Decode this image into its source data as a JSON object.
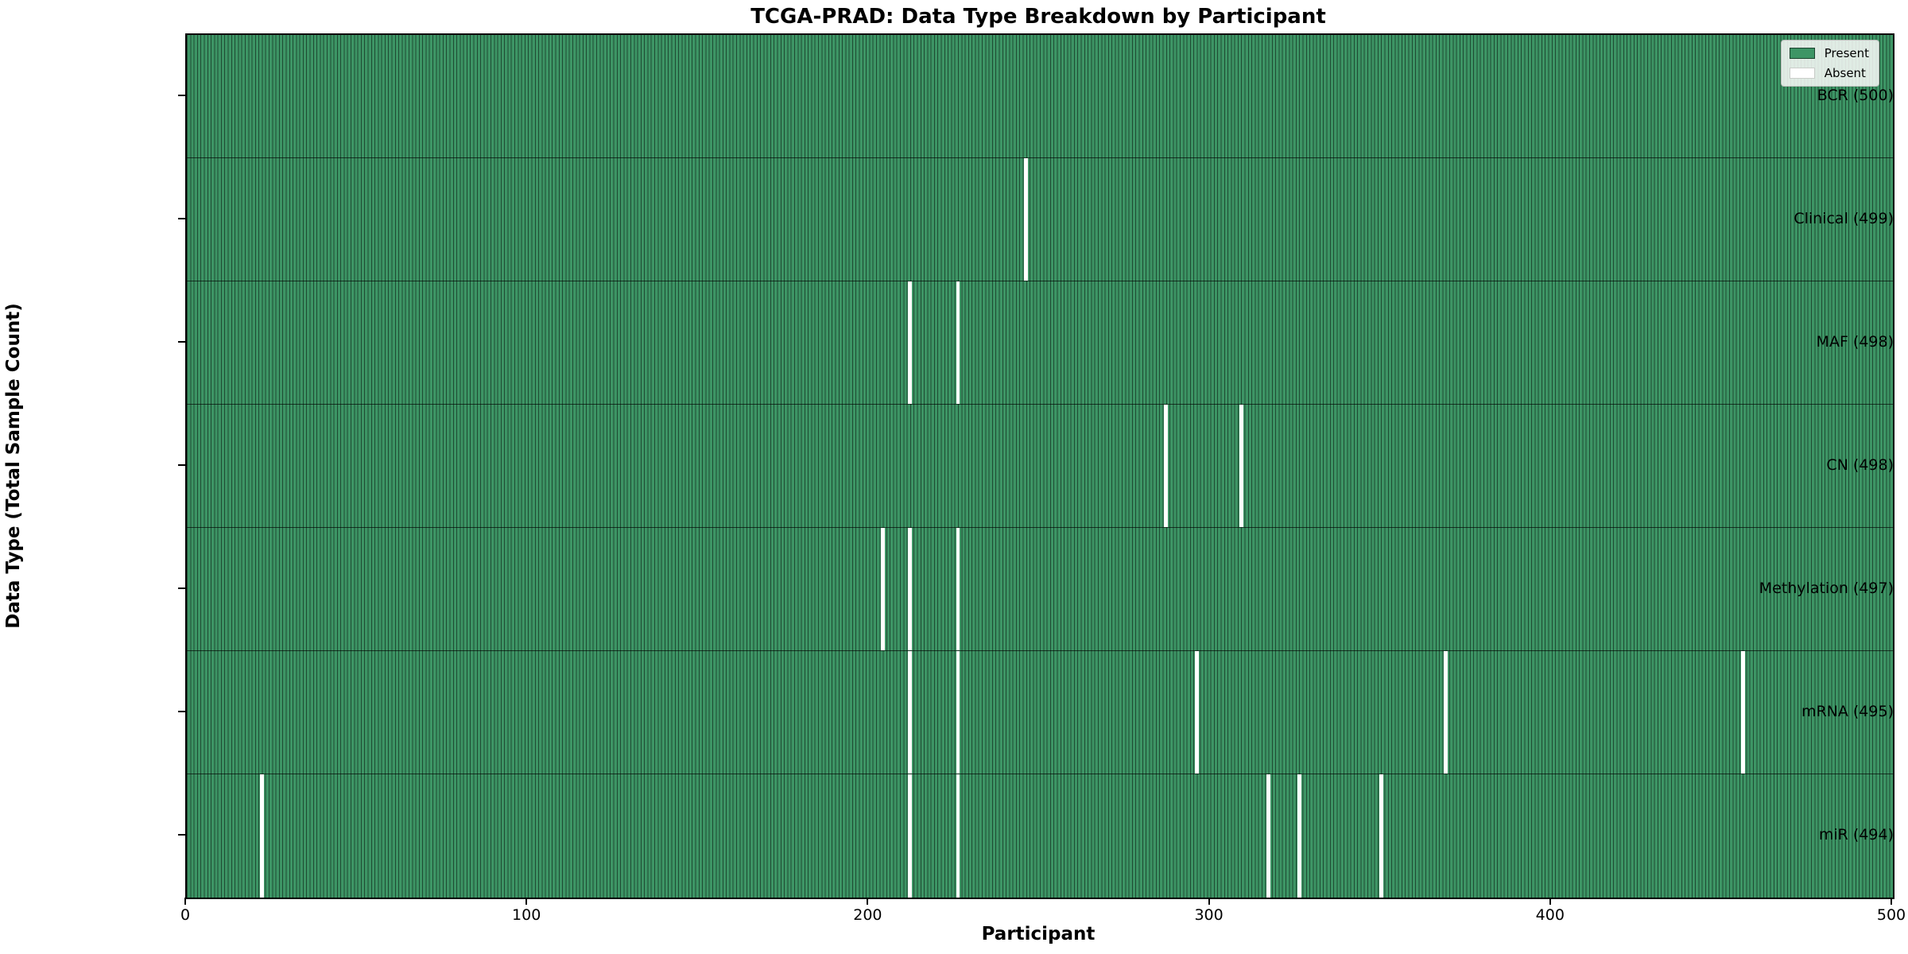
{
  "title": "TCGA-PRAD: Data Type Breakdown by Participant",
  "axes": {
    "xlabel": "Participant",
    "ylabel": "Data Type (Total Sample Count)"
  },
  "legend": {
    "present_label": "Present",
    "absent_label": "Absent"
  },
  "chart_data": {
    "type": "heatmap",
    "title": "TCGA-PRAD: Data Type Breakdown by Participant",
    "xlabel": "Participant",
    "ylabel": "Data Type (Total Sample Count)",
    "x_ticks": [
      0,
      100,
      200,
      300,
      400,
      500
    ],
    "x_range": [
      0,
      500
    ],
    "n_participants": 500,
    "grid": false,
    "legend_position": "upper right",
    "legend_entries": [
      {
        "label": "Present",
        "color": "#3d9565"
      },
      {
        "label": "Absent",
        "color": "#ffffff"
      }
    ],
    "colors": {
      "present": "#3d9565",
      "bar_edge": "rgba(0,0,0,0.5)",
      "absent": "#ffffff",
      "frame": "#000000"
    },
    "rows": [
      {
        "data_type": "BCR",
        "total": 500,
        "label": "BCR (500)",
        "absent_participants": []
      },
      {
        "data_type": "Clinical",
        "total": 499,
        "label": "Clinical (499)",
        "absent_participants": [
          246
        ]
      },
      {
        "data_type": "MAF",
        "total": 498,
        "label": "MAF (498)",
        "absent_participants": [
          212,
          226
        ]
      },
      {
        "data_type": "CN",
        "total": 498,
        "label": "CN (498)",
        "absent_participants": [
          287,
          309
        ]
      },
      {
        "data_type": "Methylation",
        "total": 497,
        "label": "Methylation (497)",
        "absent_participants": [
          204,
          212,
          226
        ]
      },
      {
        "data_type": "mRNA",
        "total": 495,
        "label": "mRNA (495)",
        "absent_participants": [
          212,
          226,
          296,
          369,
          456
        ]
      },
      {
        "data_type": "miR",
        "total": 494,
        "label": "miR (494)",
        "absent_participants": [
          22,
          212,
          226,
          317,
          326,
          350
        ]
      }
    ]
  }
}
